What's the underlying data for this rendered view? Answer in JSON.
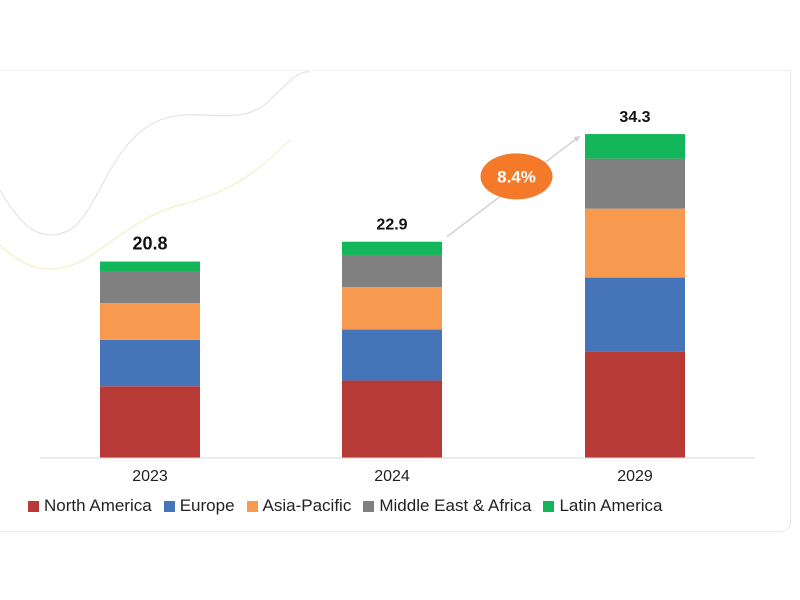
{
  "chart_data": {
    "type": "bar",
    "stacked": true,
    "categories": [
      "2023",
      "2024",
      "2029"
    ],
    "totals": [
      "20.8",
      "22.9",
      "34.3"
    ],
    "series": [
      {
        "name": "North America",
        "color": "#b83a36",
        "values": [
          7.6,
          8.2,
          11.3
        ]
      },
      {
        "name": "Europe",
        "color": "#4674b8",
        "values": [
          4.9,
          5.4,
          7.8
        ]
      },
      {
        "name": "Asia-Pacific",
        "color": "#f79a4f",
        "values": [
          3.9,
          4.5,
          7.3
        ]
      },
      {
        "name": "Middle East & Africa",
        "color": "#808080",
        "values": [
          3.3,
          3.4,
          5.3
        ]
      },
      {
        "name": "Latin America",
        "color": "#14b65a",
        "values": [
          1.1,
          1.4,
          2.6
        ]
      }
    ],
    "annotation": {
      "text": "8.4%",
      "color": "#f47a2a",
      "from": "2024",
      "to": "2029"
    },
    "ylim": [
      0,
      36
    ],
    "grid": false,
    "legend_position": "bottom"
  }
}
